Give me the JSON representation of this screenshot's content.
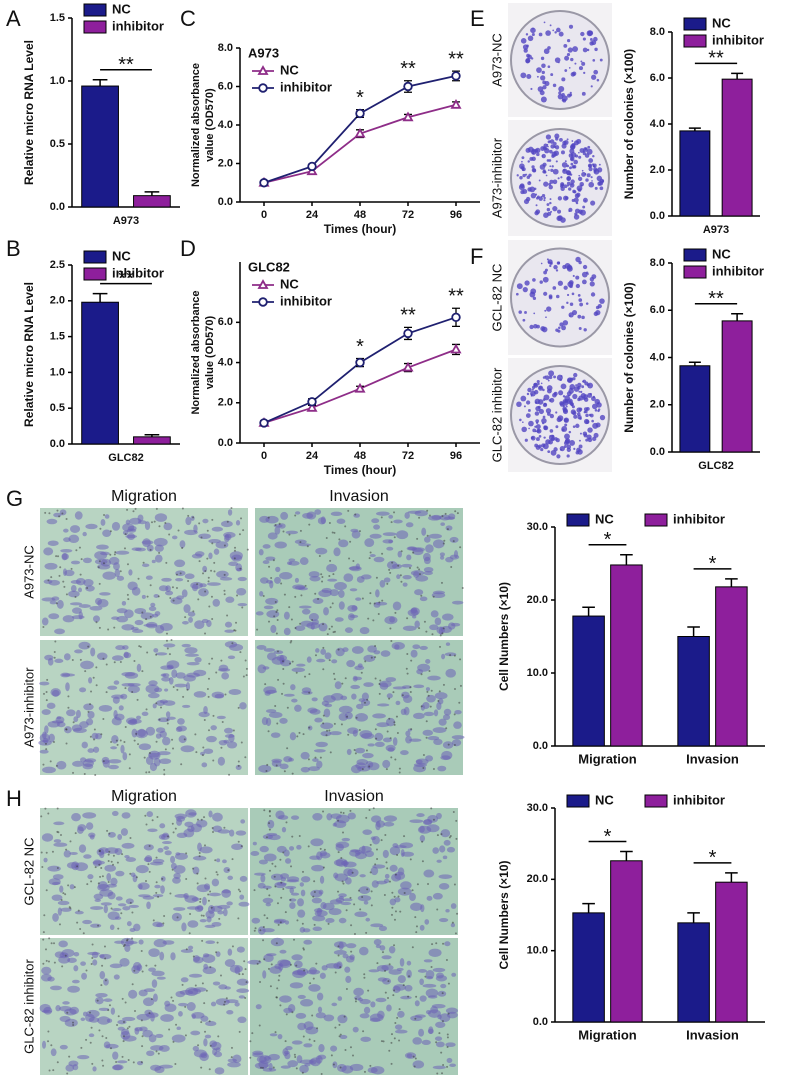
{
  "chart_data": [
    {
      "type": "bar",
      "panel": "A",
      "ylabel": "Relative micro RNA Level",
      "categories": [
        "A973"
      ],
      "series": [
        {
          "name": "NC",
          "color": "#1b1b8a",
          "values": [
            0.96
          ],
          "errors": [
            0.05
          ]
        },
        {
          "name": "inhibitor",
          "color": "#8e1f9c",
          "values": [
            0.09
          ],
          "errors": [
            0.03
          ]
        }
      ],
      "annotations": [
        "**"
      ],
      "ylim": [
        0,
        1.5
      ],
      "yticks": [
        {
          "value": 0,
          "label": "0.0"
        },
        {
          "value": 0.5,
          "label": "0.5"
        },
        {
          "value": 1,
          "label": "1.0"
        },
        {
          "value": 1.5,
          "label": "1.5"
        }
      ],
      "legend": "upper right"
    },
    {
      "type": "bar",
      "panel": "B",
      "ylabel": "Relative micro RNA Level",
      "categories": [
        "GLC82"
      ],
      "series": [
        {
          "name": "NC",
          "color": "#1b1b8a",
          "values": [
            1.98
          ],
          "errors": [
            0.12
          ]
        },
        {
          "name": "inhibitor",
          "color": "#8e1f9c",
          "values": [
            0.1
          ],
          "errors": [
            0.03
          ]
        }
      ],
      "annotations": [
        "**"
      ],
      "ylim": [
        0,
        2.5
      ],
      "yticks": [
        {
          "value": 0,
          "label": "0.0"
        },
        {
          "value": 0.5,
          "label": "0.5"
        },
        {
          "value": 1,
          "label": "1.0"
        },
        {
          "value": 1.5,
          "label": "1.5"
        },
        {
          "value": 2,
          "label": "2.0"
        },
        {
          "value": 2.5,
          "label": "2.5"
        }
      ],
      "legend": "upper right"
    },
    {
      "type": "line",
      "panel": "C",
      "title": "A973",
      "ylabel": [
        "Normalized absorbance",
        "value (OD570)"
      ],
      "xlabel": "Times (hour)",
      "x": [
        0,
        24,
        48,
        72,
        96
      ],
      "xlim": [
        -12,
        108
      ],
      "xticks": [
        0,
        24,
        48,
        72,
        96
      ],
      "series": [
        {
          "name": "NC",
          "color": "#8e2d88",
          "marker": "triangle",
          "values": [
            1.0,
            1.6,
            3.55,
            4.4,
            5.05
          ],
          "errors": [
            0.1,
            0.12,
            0.2,
            0.15,
            0.15
          ]
        },
        {
          "name": "inhibitor",
          "color": "#1f2070",
          "marker": "circle",
          "values": [
            1.0,
            1.85,
            4.6,
            6.0,
            6.55
          ],
          "errors": [
            0.1,
            0.1,
            0.2,
            0.3,
            0.25
          ]
        }
      ],
      "annotations": [
        null,
        null,
        "*",
        "**",
        "**"
      ],
      "ylim": [
        0,
        8
      ],
      "yticks": [
        {
          "value": 0,
          "label": "0.0"
        },
        {
          "value": 2,
          "label": "2.0"
        },
        {
          "value": 4,
          "label": "4.0"
        },
        {
          "value": 6,
          "label": "6.0"
        },
        {
          "value": 8,
          "label": "8.0"
        }
      ],
      "legend": "upper left"
    },
    {
      "type": "line",
      "panel": "D",
      "title": "GLC82",
      "ylabel": [
        "Normalized absorbance",
        "value (OD570)"
      ],
      "xlabel": "Times (hour)",
      "x": [
        0,
        24,
        48,
        72,
        96
      ],
      "xlim": [
        -12,
        108
      ],
      "xticks": [
        0,
        24,
        48,
        72,
        96
      ],
      "series": [
        {
          "name": "NC",
          "color": "#8e2d88",
          "marker": "triangle",
          "values": [
            1.0,
            1.75,
            2.7,
            3.75,
            4.65
          ],
          "errors": [
            0.1,
            0.12,
            0.12,
            0.2,
            0.25
          ]
        },
        {
          "name": "inhibitor",
          "color": "#1f2070",
          "marker": "circle",
          "values": [
            1.0,
            2.05,
            4.0,
            5.45,
            6.25
          ],
          "errors": [
            0.1,
            0.15,
            0.2,
            0.3,
            0.45
          ]
        }
      ],
      "annotations": [
        null,
        null,
        "*",
        "**",
        "**"
      ],
      "ylim": [
        0,
        9
      ],
      "yticks": [
        {
          "value": 0,
          "label": "0.0"
        },
        {
          "value": 2,
          "label": "2.0"
        },
        {
          "value": 4,
          "label": "4.0"
        },
        {
          "value": 6,
          "label": "6.0"
        }
      ],
      "legend": "upper left"
    },
    {
      "type": "bar",
      "panel": "E",
      "ylabel": "Number of colonies (×100)",
      "categories": [
        "A973"
      ],
      "series": [
        {
          "name": "NC",
          "color": "#1b1b8a",
          "values": [
            3.7
          ],
          "errors": [
            0.12
          ]
        },
        {
          "name": "inhibitor",
          "color": "#8e1f9c",
          "values": [
            5.95
          ],
          "errors": [
            0.25
          ]
        }
      ],
      "annotations": [
        "**"
      ],
      "ylim": [
        0,
        8
      ],
      "yticks": [
        {
          "value": 0,
          "label": "0.0"
        },
        {
          "value": 2,
          "label": "2.0"
        },
        {
          "value": 4,
          "label": "4.0"
        },
        {
          "value": 6,
          "label": "6.0"
        },
        {
          "value": 8,
          "label": "8.0"
        }
      ],
      "legend": "upper right",
      "images": {
        "row_labels": [
          "A973-NC",
          "A973-inhibitor"
        ]
      }
    },
    {
      "type": "bar",
      "panel": "F",
      "ylabel": "Number of colonies (×100)",
      "categories": [
        "GLC82"
      ],
      "series": [
        {
          "name": "NC",
          "color": "#1b1b8a",
          "values": [
            3.65
          ],
          "errors": [
            0.15
          ]
        },
        {
          "name": "inhibitor",
          "color": "#8e1f9c",
          "values": [
            5.55
          ],
          "errors": [
            0.3
          ]
        }
      ],
      "annotations": [
        "**"
      ],
      "ylim": [
        0,
        8
      ],
      "yticks": [
        {
          "value": 0,
          "label": "0.0"
        },
        {
          "value": 2,
          "label": "2.0"
        },
        {
          "value": 4,
          "label": "4.0"
        },
        {
          "value": 6,
          "label": "6.0"
        },
        {
          "value": 8,
          "label": "8.0"
        }
      ],
      "legend": "upper right",
      "images": {
        "row_labels": [
          "GCL-82 NC",
          "GLC-82 inhibitor"
        ]
      }
    },
    {
      "type": "bar",
      "panel": "G",
      "ylabel": "Cell Numbers (×10)",
      "categories": [
        "Migration",
        "Invasion"
      ],
      "series": [
        {
          "name": "NC",
          "color": "#1b1b8a",
          "values": [
            17.8,
            15.0
          ],
          "errors": [
            1.2,
            1.3
          ]
        },
        {
          "name": "inhibitor",
          "color": "#8e1f9c",
          "values": [
            24.8,
            21.8
          ],
          "errors": [
            1.4,
            1.1
          ]
        }
      ],
      "annotations": [
        "*",
        "*"
      ],
      "ylim": [
        0,
        30
      ],
      "yticks": [
        {
          "value": 0,
          "label": "0.0"
        },
        {
          "value": 10,
          "label": "10.0"
        },
        {
          "value": 20,
          "label": "20.0"
        },
        {
          "value": 30,
          "label": "30.0"
        }
      ],
      "legend": "top",
      "images": {
        "column_labels": [
          "Migration",
          "Invasion"
        ],
        "row_labels": [
          "A973-NC",
          "A973-inhibitor"
        ]
      }
    },
    {
      "type": "bar",
      "panel": "H",
      "ylabel": "Cell Numbers (×10)",
      "categories": [
        "Migration",
        "Invasion"
      ],
      "series": [
        {
          "name": "NC",
          "color": "#1b1b8a",
          "values": [
            15.3,
            13.9
          ],
          "errors": [
            1.3,
            1.4
          ]
        },
        {
          "name": "inhibitor",
          "color": "#8e1f9c",
          "values": [
            22.6,
            19.6
          ],
          "errors": [
            1.3,
            1.3
          ]
        }
      ],
      "annotations": [
        "*",
        "*"
      ],
      "ylim": [
        0,
        30
      ],
      "yticks": [
        {
          "value": 0,
          "label": "0.0"
        },
        {
          "value": 10,
          "label": "10.0"
        },
        {
          "value": 20,
          "label": "20.0"
        },
        {
          "value": 30,
          "label": "30.0"
        }
      ],
      "legend": "top",
      "images": {
        "column_labels": [
          "Migration",
          "Invasion"
        ],
        "row_labels": [
          "GCL-82 NC",
          "GLC-82 inhibitor"
        ]
      }
    }
  ]
}
